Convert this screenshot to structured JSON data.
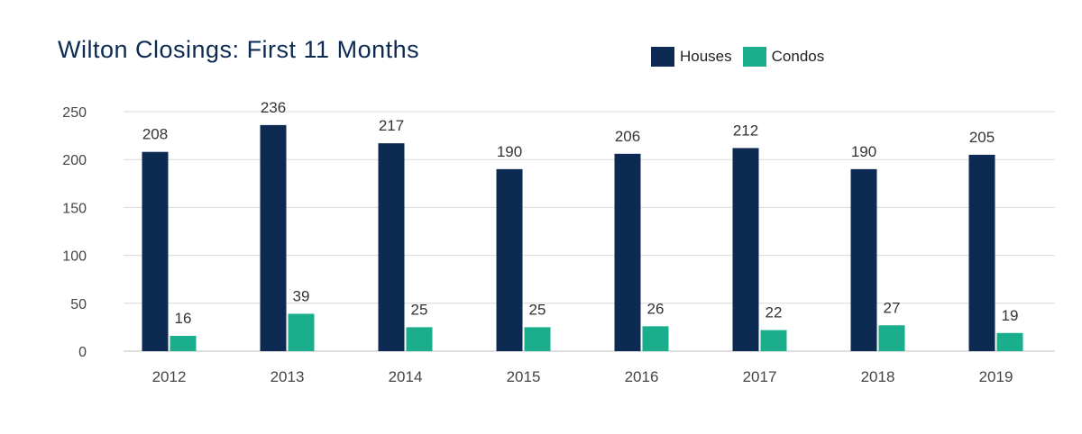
{
  "chart_data": {
    "type": "bar",
    "title": "Wilton Closings: First 11 Months",
    "xlabel": "",
    "ylabel": "",
    "categories": [
      "2012",
      "2013",
      "2014",
      "2015",
      "2016",
      "2017",
      "2018",
      "2019"
    ],
    "series": [
      {
        "name": "Houses",
        "color": "#0d2a52",
        "values": [
          208,
          236,
          217,
          190,
          206,
          212,
          190,
          205
        ]
      },
      {
        "name": "Condos",
        "color": "#1aae8c",
        "values": [
          16,
          39,
          25,
          25,
          26,
          22,
          27,
          19
        ]
      }
    ],
    "ylim": [
      0,
      250
    ],
    "yticks": [
      0,
      50,
      100,
      150,
      200,
      250
    ],
    "grid": true,
    "legend_position": "top-right",
    "data_labels": true
  }
}
